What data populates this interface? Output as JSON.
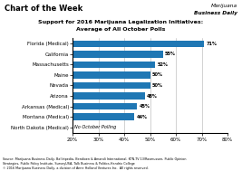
{
  "chart_data": {
    "type": "bar",
    "orientation": "horizontal",
    "title": "Support for 2016 Marijuana Legalization Initiatives:",
    "subtitle": "Average of All October Polls",
    "annotations": [
      "Chart of the Week",
      "Marijuana",
      "Business Daily",
      "Source: Marijuana Business Daily, Ballotpedia, Bendixen & Amandi International, KTN-TV 13/Rasmussen, Public Opinion\nStrategies, Public Policy Institute, SurveyUSA, Talk Business & Politics-Hendrix College\n© 2016 Marijuana Business Daily, a division of Anne Holland Ventures Inc.  All rights reserved."
    ],
    "categories": [
      "North Dakota (Medical)",
      "Montana (Medical)",
      "Arkansas (Medical)",
      "Arizona",
      "Nevada",
      "Maine",
      "Massachusetts",
      "California",
      "Florida (Medical)"
    ],
    "values": [
      null,
      44,
      45,
      48,
      50,
      50,
      52,
      55,
      71
    ],
    "value_labels": [
      "No October Polling",
      "44%",
      "45%",
      "48%",
      "50%",
      "50%",
      "52%",
      "55%",
      "71%"
    ],
    "data_labels": true,
    "xlim": [
      20,
      80
    ],
    "xticks": [
      {
        "value": 20,
        "label": "20%"
      },
      {
        "value": 30,
        "label": "30%"
      },
      {
        "value": 40,
        "label": "40%"
      },
      {
        "value": 50,
        "label": "50%"
      },
      {
        "value": 60,
        "label": "60%"
      },
      {
        "value": 70,
        "label": "70%"
      },
      {
        "value": 80,
        "label": "80%"
      }
    ],
    "grid": true
  }
}
